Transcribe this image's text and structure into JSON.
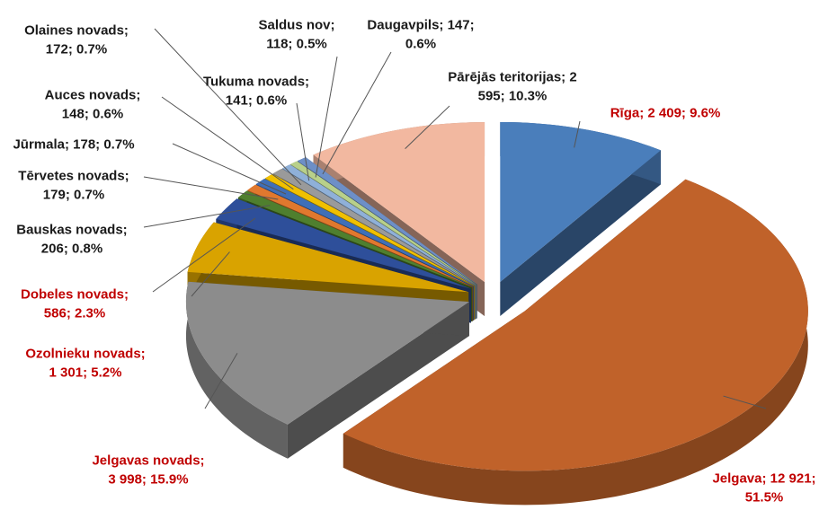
{
  "chart_data": {
    "type": "pie3d",
    "categories": [
      "Rīga",
      "Jelgava",
      "Jelgavas novads",
      "Ozolnieku novads",
      "Dobeles novads",
      "Bauskas novads",
      "Tērvetes novads",
      "Jūrmala",
      "Auces novads",
      "Olaines novads",
      "Tukuma novads",
      "Saldus nov",
      "Daugavpils",
      "Pārējās teritorijas"
    ],
    "values": [
      2409,
      12921,
      3998,
      1301,
      586,
      206,
      179,
      178,
      148,
      172,
      141,
      118,
      147,
      2595
    ],
    "percentages": [
      9.6,
      51.5,
      15.9,
      5.2,
      2.3,
      0.8,
      0.7,
      0.7,
      0.6,
      0.7,
      0.6,
      0.5,
      0.6,
      10.3
    ],
    "value_labels": [
      [
        "Rīga; 2 409; 9.6%"
      ],
      [
        "Jelgava; 12 921;",
        "51.5%"
      ],
      [
        "Jelgavas novads;",
        "3 998; 15.9%"
      ],
      [
        "Ozolnieku novads;",
        "1 301; 5.2%"
      ],
      [
        "Dobeles novads;",
        "586; 2.3%"
      ],
      [
        "Bauskas novads;",
        "206; 0.8%"
      ],
      [
        "Tērvetes novads;",
        "179; 0.7%"
      ],
      [
        "Jūrmala; 178; 0.7%"
      ],
      [
        "Auces novads;",
        "148; 0.6%"
      ],
      [
        "Olaines novads;",
        "172; 0.7%"
      ],
      [
        "Tukuma novads;",
        "141; 0.6%"
      ],
      [
        "Saldus nov;",
        "118; 0.5%"
      ],
      [
        "Daugavpils; 147;",
        "0.6%"
      ],
      [
        "Pārējās teritorijas; 2",
        "595; 10.3%"
      ]
    ],
    "colors": [
      "#4a7ebb",
      "#c0622a",
      "#8c8c8c",
      "#d9a300",
      "#2e4f9a",
      "#4f7f2e",
      "#e0782e",
      "#3f6fb8",
      "#f0c000",
      "#9a9a9a",
      "#8fb0d8",
      "#b8d08a",
      "#6d8fc7",
      "#f2b8a0"
    ],
    "label_colors": [
      "#c00000",
      "#c00000",
      "#c00000",
      "#c00000",
      "#c00000",
      "#1a1a1a",
      "#1a1a1a",
      "#1a1a1a",
      "#1a1a1a",
      "#1a1a1a",
      "#1a1a1a",
      "#1a1a1a",
      "#1a1a1a",
      "#1a1a1a"
    ]
  }
}
